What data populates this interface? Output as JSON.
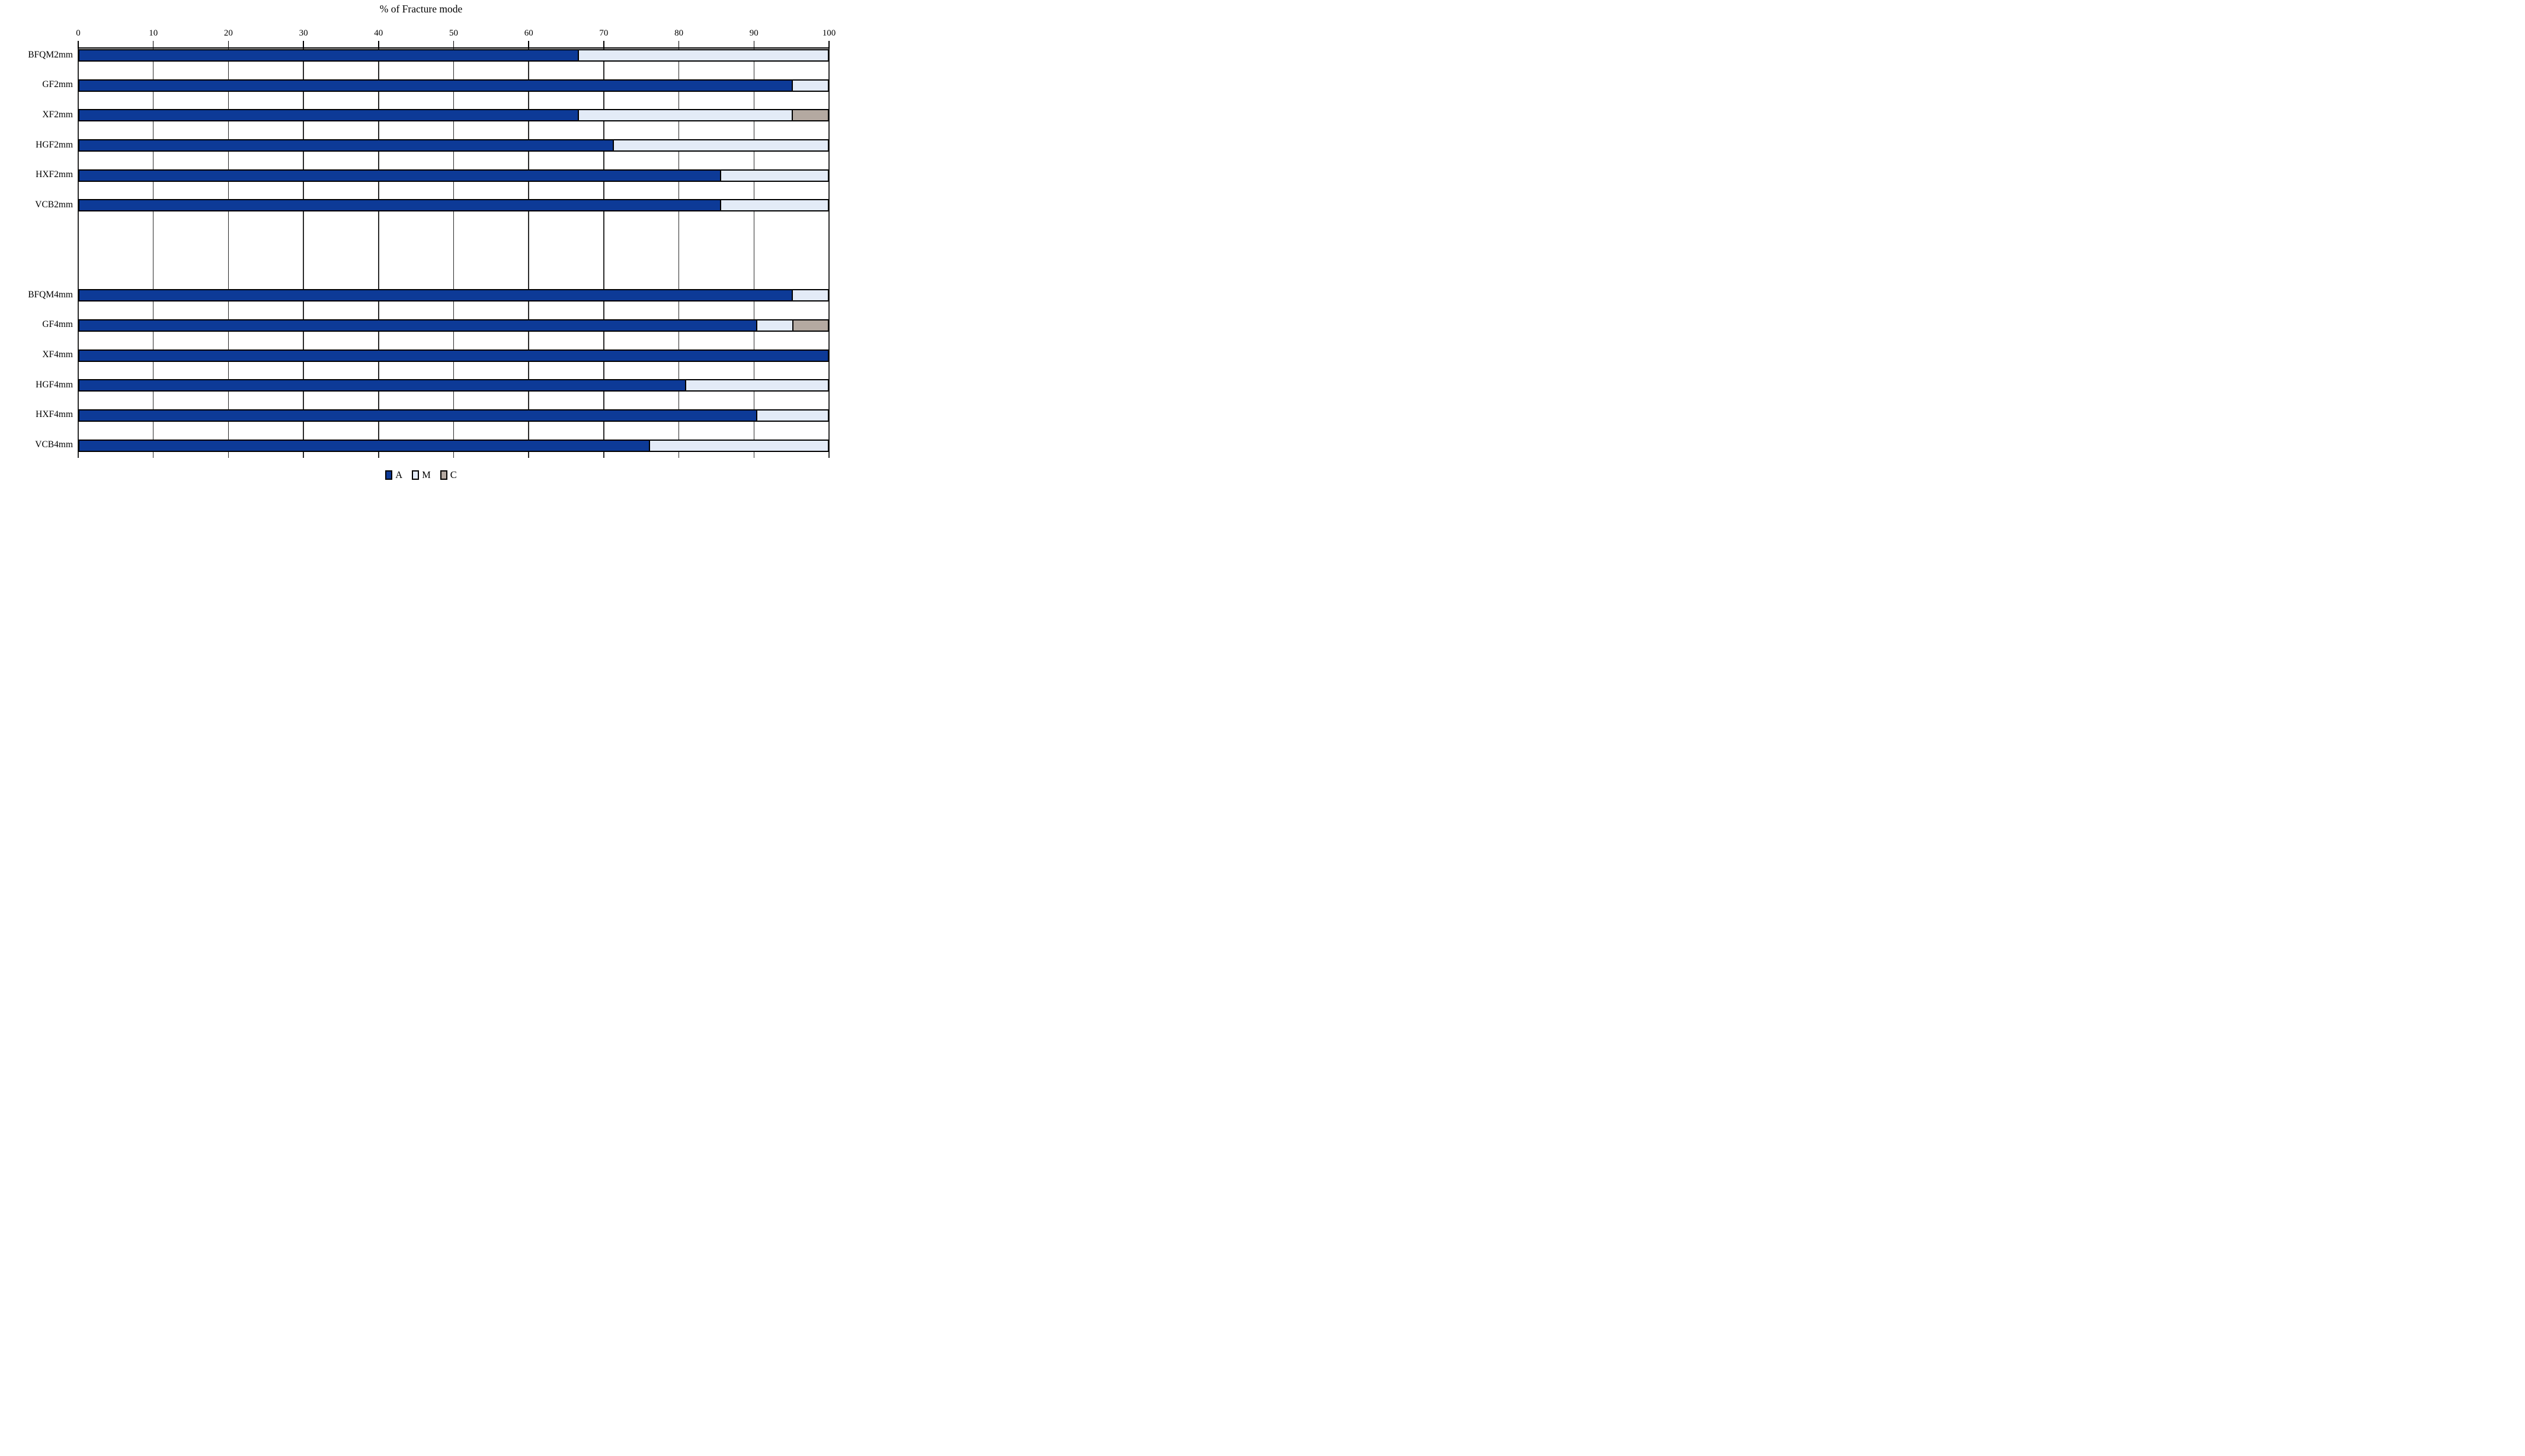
{
  "chart_data": {
    "type": "bar",
    "orientation": "horizontal",
    "stacked": true,
    "title": "% of Fracture mode",
    "xlabel": "% of Fracture mode",
    "axis_position": "top",
    "xlim": [
      0,
      100
    ],
    "tick_step": 10,
    "ticks": [
      0,
      10,
      20,
      30,
      40,
      50,
      60,
      70,
      80,
      90,
      100
    ],
    "grid": "vertical",
    "legend_position": "bottom",
    "categories": [
      "BFQM2mm",
      "GF2mm",
      "XF2mm",
      "HGF2mm",
      "HXF2mm",
      "VCB2mm",
      "BFQM4mm",
      "GF4mm",
      "XF4mm",
      "HGF4mm",
      "HXF4mm",
      "VCB4mm"
    ],
    "group_gap_after_index": 5,
    "group_gap_rows": 2,
    "series": [
      {
        "name": "A",
        "color": "#0d3a97",
        "values": [
          66.7,
          95.2,
          66.7,
          71.4,
          85.7,
          85.7,
          95.2,
          90.5,
          100,
          81.0,
          90.5,
          76.2
        ]
      },
      {
        "name": "M",
        "color": "#e3ebf7",
        "values": [
          33.3,
          4.8,
          28.5,
          28.6,
          14.3,
          14.3,
          4.8,
          4.8,
          0,
          19.0,
          9.5,
          23.8
        ]
      },
      {
        "name": "C",
        "color": "#b4a9a1",
        "values": [
          0,
          0,
          4.8,
          0,
          0,
          0,
          0,
          4.7,
          0,
          0,
          0,
          0
        ]
      }
    ],
    "colors": {
      "grid": "#2a2a2a",
      "bar_border": "#000000",
      "background": "#ffffff"
    }
  }
}
